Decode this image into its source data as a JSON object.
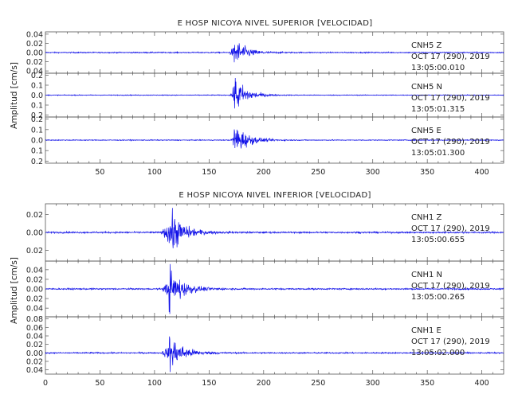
{
  "colors": {
    "trace": "#1010e8",
    "axis": "#555555",
    "text": "#222222"
  },
  "chart_data": [
    {
      "type": "line",
      "title": "E HOSP NICOYA NIVEL SUPERIOR [VELOCIDAD]",
      "ylabel": "Amplitud [cm/s]",
      "xlim": [
        0,
        420
      ],
      "x_ticks": [
        50,
        100,
        150,
        200,
        250,
        300,
        350,
        400
      ],
      "traces": [
        {
          "station": "CNH5",
          "component": "Z",
          "date": "OCT 17 (290), 2019",
          "time": "13:05:00.010",
          "ylim": [
            -0.045,
            0.045
          ],
          "y_ticks": [
            -0.04,
            -0.02,
            0.0,
            0.02,
            0.04
          ],
          "y_tick_labels": [
            "0.04",
            "0.02",
            "0.00",
            "0.02",
            "0.04"
          ],
          "peak_amplitude": 0.032,
          "onset_s": 168,
          "peak_s": 173,
          "noise_level": 0.0012,
          "coda_s": 35
        },
        {
          "station": "CNH5",
          "component": "N",
          "date": "OCT 17 (290), 2019",
          "time": "13:05:01.315",
          "ylim": [
            -0.22,
            0.22
          ],
          "y_ticks": [
            -0.2,
            -0.1,
            0.0,
            0.1,
            0.2
          ],
          "y_tick_labels": [
            "0.2",
            "0.1",
            "0.0",
            "0.1",
            "0.2"
          ],
          "peak_amplitude": 0.2,
          "onset_s": 169,
          "peak_s": 173,
          "noise_level": 0.004,
          "coda_s": 35
        },
        {
          "station": "CNH5",
          "component": "E",
          "date": "OCT 17 (290), 2019",
          "time": "13:05:01.300",
          "ylim": [
            -0.22,
            0.22
          ],
          "y_ticks": [
            -0.2,
            -0.1,
            0.0,
            0.1,
            0.2
          ],
          "y_tick_labels": [
            "0.2",
            "0.1",
            "0.0",
            "0.1",
            "0.2"
          ],
          "peak_amplitude": 0.17,
          "onset_s": 170,
          "peak_s": 173,
          "noise_level": 0.004,
          "coda_s": 38
        }
      ]
    },
    {
      "type": "line",
      "title": "E HOSP NICOYA NIVEL INFERIOR [VELOCIDAD]",
      "ylabel": "Amplitud [cm/s]",
      "xlim": [
        0,
        420
      ],
      "x_ticks": [
        0,
        50,
        100,
        150,
        200,
        250,
        300,
        350,
        400
      ],
      "traces": [
        {
          "station": "CNH1",
          "component": "Z",
          "date": "OCT 17 (290), 2019",
          "time": "13:05:00.655",
          "ylim": [
            -0.032,
            0.032
          ],
          "y_ticks": [
            -0.02,
            0.0,
            0.02
          ],
          "y_tick_labels": [
            "0.02",
            "0.00",
            "0.02"
          ],
          "peak_amplitude": 0.028,
          "onset_s": 106,
          "peak_s": 113,
          "noise_level": 0.0009,
          "coda_s": 40
        },
        {
          "station": "CNH1",
          "component": "N",
          "date": "OCT 17 (290), 2019",
          "time": "13:05:00.265",
          "ylim": [
            -0.058,
            0.058
          ],
          "y_ticks": [
            -0.04,
            -0.02,
            0.0,
            0.02,
            0.04
          ],
          "y_tick_labels": [
            "0.04",
            "0.02",
            "0.00",
            "0.02",
            "0.04"
          ],
          "peak_amplitude": 0.05,
          "onset_s": 107,
          "peak_s": 113,
          "noise_level": 0.0015,
          "coda_s": 40
        },
        {
          "station": "CNH1",
          "component": "E",
          "date": "OCT 17 (290), 2019",
          "time": "13:05:02.000",
          "ylim": [
            -0.05,
            0.085
          ],
          "y_ticks": [
            -0.04,
            -0.02,
            0.0,
            0.02,
            0.04,
            0.06,
            0.08
          ],
          "y_tick_labels": [
            "0.04",
            "0.02",
            "0.00",
            "0.02",
            "0.04",
            "0.06",
            "0.08"
          ],
          "peak_amplitude": 0.045,
          "onset_s": 106,
          "peak_s": 113,
          "noise_level": 0.0015,
          "coda_s": 42
        }
      ]
    }
  ]
}
